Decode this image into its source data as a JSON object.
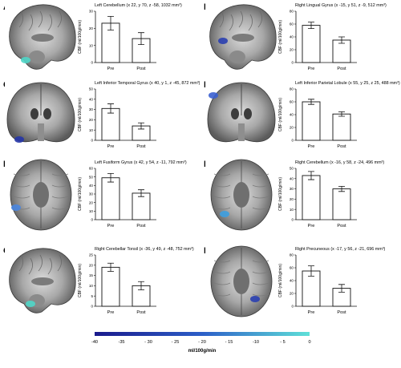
{
  "colorbar": {
    "ticks": [
      "-40",
      "-35",
      "- 30",
      "- 25",
      "- 20",
      "- 15",
      "-10",
      "- 5",
      "0"
    ],
    "unit_label": "ml/100g/min",
    "color_start": "#1a1a8c",
    "color_end": "#5fe0d8"
  },
  "chart_data": [
    {
      "panel": "A",
      "type": "bar",
      "title": "Left Cerebellum (x 22, y 70, z -58, 1032 mm³)",
      "ylabel": "CBF (ml/100g/min)",
      "categories": [
        "Pre",
        "Post"
      ],
      "values": [
        23,
        14
      ],
      "errors": [
        4,
        3.5
      ],
      "ylim": [
        0,
        30
      ],
      "yticks": [
        "0",
        "10",
        "20",
        "30"
      ],
      "highlight": "cerebellum-left",
      "view": "sagittal"
    },
    {
      "panel": "B",
      "type": "bar",
      "title": "Right Lingual Gyrus (x -15, y 51, z -9, 512 mm³)",
      "ylabel": "CBF (ml/100g/min)",
      "categories": [
        "Pre",
        "Post"
      ],
      "values": [
        58,
        35
      ],
      "errors": [
        5,
        5
      ],
      "ylim": [
        0,
        80
      ],
      "yticks": [
        "0",
        "20",
        "40",
        "60",
        "80"
      ],
      "highlight": "lingual",
      "view": "sagittal"
    },
    {
      "panel": "C",
      "type": "bar",
      "title": "Left Inferior Temporal Gyrus (x 40, y 1, z -45, 872 mm³)",
      "ylabel": "CBF (ml/100g/min)",
      "categories": [
        "Pre",
        "Post"
      ],
      "values": [
        31,
        14
      ],
      "errors": [
        4.5,
        3
      ],
      "ylim": [
        0,
        50
      ],
      "yticks": [
        "0",
        "10",
        "20",
        "30",
        "40",
        "50"
      ],
      "highlight": "inftemporal",
      "view": "coronal"
    },
    {
      "panel": "D",
      "type": "bar",
      "title": "Left Inferior Parietal Lobule (x 55, y 25, z 25, 488 mm³)",
      "ylabel": "CBF (ml/100g/min)",
      "categories": [
        "Pre",
        "Post"
      ],
      "values": [
        60,
        41
      ],
      "errors": [
        4,
        3.5
      ],
      "ylim": [
        0,
        80
      ],
      "yticks": [
        "0",
        "20",
        "40",
        "60",
        "80"
      ],
      "highlight": "parietal",
      "view": "coronal"
    },
    {
      "panel": "E",
      "type": "bar",
      "title": "Left Fusiform Gyrus (x 42, y 54, z -11, 792 mm³)",
      "ylabel": "CBF (ml/100g/min)",
      "categories": [
        "Pre",
        "Post"
      ],
      "values": [
        49,
        31
      ],
      "errors": [
        5,
        4
      ],
      "ylim": [
        0,
        60
      ],
      "yticks": [
        "0",
        "10",
        "20",
        "30",
        "40",
        "50",
        "60"
      ],
      "highlight": "fusiform",
      "view": "axial"
    },
    {
      "panel": "F",
      "type": "bar",
      "title": "Right Cerebellum (x -16, y 58, z -24, 496 mm³)",
      "ylabel": "CBF (ml/100g/min)",
      "categories": [
        "Pre",
        "Post"
      ],
      "values": [
        43,
        30
      ],
      "errors": [
        4,
        2.5
      ],
      "ylim": [
        0,
        50
      ],
      "yticks": [
        "0",
        "10",
        "20",
        "30",
        "40",
        "50"
      ],
      "highlight": "cerebellum-right",
      "view": "axial"
    },
    {
      "panel": "G",
      "type": "bar",
      "title": "Right Cerebellar Tonsil (x -36, y 49, z -48, 752 mm³)",
      "ylabel": "CBF (ml/100g/min)",
      "categories": [
        "Pre",
        "Post"
      ],
      "values": [
        19,
        10
      ],
      "errors": [
        2,
        2
      ],
      "ylim": [
        0,
        25
      ],
      "yticks": [
        "0",
        "5",
        "10",
        "15",
        "20",
        "25"
      ],
      "highlight": "tonsil",
      "view": "sagittal"
    },
    {
      "panel": "H",
      "type": "bar",
      "title": "Right Precuneous (x -17, y 56, z -21, 696 mm³)",
      "ylabel": "CBF (ml/100g/min)",
      "categories": [
        "Pre",
        "Post"
      ],
      "values": [
        55,
        28
      ],
      "errors": [
        8,
        6
      ],
      "ylim": [
        0,
        80
      ],
      "yticks": [
        "0",
        "20",
        "40",
        "60",
        "80"
      ],
      "highlight": "precuneus",
      "view": "axial"
    }
  ]
}
